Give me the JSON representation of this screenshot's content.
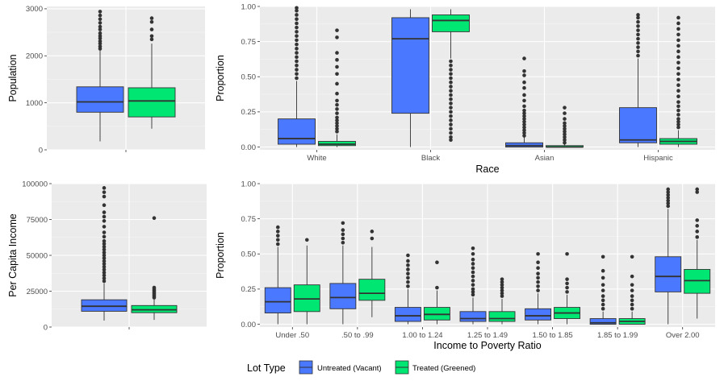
{
  "colors": {
    "untreated": "#4a78ff",
    "treated": "#00e673",
    "panel": "#ebebeb",
    "grid_major": "#ffffff",
    "outline": "#333333"
  },
  "legend": {
    "title": "Lot Type",
    "untreated": "Untreated (Vacant)",
    "treated": "Treated (Greened)"
  },
  "chart_data": [
    {
      "type": "boxplot",
      "ylabel": "Population",
      "xlabel": "",
      "ylim": [
        0,
        3050
      ],
      "yticks": [
        0,
        1000,
        2000,
        3000
      ],
      "ytick_labels": [
        "0",
        "1000",
        "2000",
        "3000"
      ],
      "categories": [
        ""
      ],
      "series": [
        {
          "group": "untreated",
          "boxes": [
            {
              "whislo": 180,
              "q1": 800,
              "med": 1020,
              "q3": 1340,
              "whishi": 2120,
              "fliers": [
                2150,
                2200,
                2260,
                2310,
                2370,
                2420,
                2480,
                2560,
                2620,
                2700,
                2780,
                2860,
                2940
              ]
            }
          ]
        },
        {
          "group": "treated",
          "boxes": [
            {
              "whislo": 450,
              "q1": 700,
              "med": 1040,
              "q3": 1320,
              "whishi": 2260,
              "fliers": [
                2350,
                2420,
                2560,
                2720,
                2800
              ]
            }
          ]
        }
      ]
    },
    {
      "type": "boxplot",
      "ylabel": "Proportion",
      "xlabel": "Race",
      "ylim": [
        -0.02,
        1.0
      ],
      "yticks": [
        0,
        0.25,
        0.5,
        0.75,
        1.0
      ],
      "ytick_labels": [
        "0.00",
        "0.25",
        "0.50",
        "0.75",
        "1.00"
      ],
      "categories": [
        "White",
        "Black",
        "Asian",
        "Hispanic"
      ],
      "series": [
        {
          "group": "untreated",
          "boxes": [
            {
              "whislo": 0,
              "q1": 0.02,
              "med": 0.06,
              "q3": 0.2,
              "whishi": 0.47,
              "fliers": [
                0.49,
                0.52,
                0.55,
                0.58,
                0.61,
                0.64,
                0.67,
                0.7,
                0.73,
                0.76,
                0.79,
                0.82,
                0.85,
                0.88,
                0.91,
                0.94,
                0.97,
                0.99
              ]
            },
            {
              "whislo": 0,
              "q1": 0.24,
              "med": 0.77,
              "q3": 0.92,
              "whishi": 0.98,
              "fliers": []
            },
            {
              "whislo": 0,
              "q1": 0.0,
              "med": 0.01,
              "q3": 0.03,
              "whishi": 0.07,
              "fliers": [
                0.08,
                0.1,
                0.12,
                0.14,
                0.16,
                0.18,
                0.2,
                0.22,
                0.24,
                0.26,
                0.29,
                0.33,
                0.37,
                0.42,
                0.46,
                0.51,
                0.54,
                0.63
              ]
            },
            {
              "whislo": 0,
              "q1": 0.03,
              "med": 0.05,
              "q3": 0.28,
              "whishi": 0.63,
              "fliers": [
                0.65,
                0.68,
                0.71,
                0.74,
                0.77,
                0.8,
                0.83,
                0.86,
                0.89,
                0.92,
                0.94
              ]
            }
          ]
        },
        {
          "group": "treated",
          "boxes": [
            {
              "whislo": 0,
              "q1": 0.01,
              "med": 0.02,
              "q3": 0.04,
              "whishi": 0.09,
              "fliers": [
                0.11,
                0.13,
                0.15,
                0.17,
                0.19,
                0.21,
                0.24,
                0.27,
                0.3,
                0.33,
                0.38,
                0.45,
                0.52,
                0.57,
                0.62,
                0.67,
                0.78,
                0.83
              ]
            },
            {
              "whislo": 0.63,
              "q1": 0.82,
              "med": 0.9,
              "q3": 0.94,
              "whishi": 0.98,
              "fliers": [
                0.61,
                0.58,
                0.55,
                0.52,
                0.49,
                0.46,
                0.43,
                0.4,
                0.37,
                0.34,
                0.31,
                0.28,
                0.25,
                0.22,
                0.19,
                0.16,
                0.13,
                0.1,
                0.07,
                0.05
              ]
            },
            {
              "whislo": 0,
              "q1": 0.0,
              "med": 0.0,
              "q3": 0.01,
              "whishi": 0.02,
              "fliers": [
                0.03,
                0.05,
                0.07,
                0.09,
                0.11,
                0.13,
                0.15,
                0.17,
                0.2,
                0.24,
                0.28
              ]
            },
            {
              "whislo": 0,
              "q1": 0.02,
              "med": 0.04,
              "q3": 0.06,
              "whishi": 0.12,
              "fliers": [
                0.14,
                0.16,
                0.18,
                0.2,
                0.23,
                0.26,
                0.29,
                0.32,
                0.36,
                0.4,
                0.44,
                0.48,
                0.52,
                0.56,
                0.6,
                0.64,
                0.68,
                0.72,
                0.76,
                0.8,
                0.84,
                0.88,
                0.92
              ]
            }
          ]
        }
      ]
    },
    {
      "type": "boxplot",
      "ylabel": "Per Capita Income",
      "xlabel": "",
      "ylim": [
        0,
        100000
      ],
      "yticks": [
        0,
        25000,
        50000,
        75000,
        100000
      ],
      "ytick_labels": [
        "0",
        "25000",
        "50000",
        "75000",
        "100000"
      ],
      "categories": [
        ""
      ],
      "series": [
        {
          "group": "untreated",
          "boxes": [
            {
              "whislo": 4500,
              "q1": 11000,
              "med": 14500,
              "q3": 19000,
              "whishi": 30500,
              "fliers": [
                32000,
                34000,
                36000,
                38000,
                40000,
                42000,
                44000,
                46000,
                48000,
                50000,
                52000,
                54000,
                56000,
                58000,
                60000,
                63000,
                66000,
                70000,
                74000,
                77000,
                80000,
                85000,
                91000,
                94000,
                97000
              ]
            }
          ]
        },
        {
          "group": "treated",
          "boxes": [
            {
              "whislo": 5000,
              "q1": 10000,
              "med": 12000,
              "q3": 15000,
              "whishi": 19500,
              "fliers": [
                20500,
                21500,
                22500,
                23500,
                24500,
                25500,
                26500,
                27500,
                76000
              ]
            }
          ]
        }
      ]
    },
    {
      "type": "boxplot",
      "ylabel": "Proportion",
      "xlabel": "Income to Poverty Ratio",
      "ylim": [
        -0.02,
        1.0
      ],
      "yticks": [
        0,
        0.25,
        0.5,
        0.75,
        1.0
      ],
      "ytick_labels": [
        "0.00",
        "0.25",
        "0.50",
        "0.75",
        "1.00"
      ],
      "categories": [
        "Under .50",
        ".50 to .99",
        "1.00 to 1.24",
        "1.25 to 1.49",
        "1.50 to 1.85",
        "1.85 to 1.99",
        "Over 2.00"
      ],
      "series": [
        {
          "group": "untreated",
          "boxes": [
            {
              "whislo": 0,
              "q1": 0.08,
              "med": 0.16,
              "q3": 0.26,
              "whishi": 0.55,
              "fliers": [
                0.57,
                0.6,
                0.63,
                0.66,
                0.69
              ]
            },
            {
              "whislo": 0,
              "q1": 0.11,
              "med": 0.19,
              "q3": 0.29,
              "whishi": 0.56,
              "fliers": [
                0.58,
                0.61,
                0.64,
                0.67,
                0.72
              ]
            },
            {
              "whislo": 0,
              "q1": 0.02,
              "med": 0.06,
              "q3": 0.12,
              "whishi": 0.25,
              "fliers": [
                0.27,
                0.3,
                0.33,
                0.36,
                0.39,
                0.42,
                0.45,
                0.49
              ]
            },
            {
              "whislo": 0,
              "q1": 0.02,
              "med": 0.04,
              "q3": 0.09,
              "whishi": 0.19,
              "fliers": [
                0.21,
                0.23,
                0.25,
                0.28,
                0.31,
                0.34,
                0.37,
                0.4,
                0.43,
                0.46,
                0.5,
                0.54
              ]
            },
            {
              "whislo": 0,
              "q1": 0.03,
              "med": 0.06,
              "q3": 0.11,
              "whishi": 0.22,
              "fliers": [
                0.24,
                0.27,
                0.3,
                0.33,
                0.36,
                0.4,
                0.44,
                0.5
              ]
            },
            {
              "whislo": 0,
              "q1": 0.0,
              "med": 0.01,
              "q3": 0.04,
              "whishi": 0.09,
              "fliers": [
                0.11,
                0.14,
                0.17,
                0.2,
                0.24,
                0.28,
                0.33,
                0.38,
                0.48
              ]
            },
            {
              "whislo": 0.0,
              "q1": 0.23,
              "med": 0.34,
              "q3": 0.48,
              "whishi": 0.82,
              "fliers": [
                0.84,
                0.86,
                0.88,
                0.9,
                0.92,
                0.94,
                0.96
              ]
            }
          ]
        },
        {
          "group": "treated",
          "boxes": [
            {
              "whislo": 0,
              "q1": 0.09,
              "med": 0.18,
              "q3": 0.28,
              "whishi": 0.56,
              "fliers": [
                0.6
              ]
            },
            {
              "whislo": 0.05,
              "q1": 0.17,
              "med": 0.22,
              "q3": 0.32,
              "whishi": 0.55,
              "fliers": [
                0.61,
                0.66
              ]
            },
            {
              "whislo": 0,
              "q1": 0.03,
              "med": 0.07,
              "q3": 0.12,
              "whishi": 0.24,
              "fliers": [
                0.26,
                0.44
              ]
            },
            {
              "whislo": 0,
              "q1": 0.02,
              "med": 0.04,
              "q3": 0.09,
              "whishi": 0.18,
              "fliers": [
                0.2,
                0.22,
                0.24,
                0.26,
                0.28,
                0.3,
                0.32
              ]
            },
            {
              "whislo": 0,
              "q1": 0.04,
              "med": 0.08,
              "q3": 0.12,
              "whishi": 0.21,
              "fliers": [
                0.23,
                0.26,
                0.29,
                0.32,
                0.5
              ]
            },
            {
              "whislo": 0,
              "q1": 0.0,
              "med": 0.02,
              "q3": 0.04,
              "whishi": 0.09,
              "fliers": [
                0.11,
                0.14,
                0.17,
                0.2,
                0.24,
                0.28,
                0.34,
                0.48
              ]
            },
            {
              "whislo": 0.04,
              "q1": 0.22,
              "med": 0.31,
              "q3": 0.39,
              "whishi": 0.6,
              "fliers": [
                0.62,
                0.66,
                0.7,
                0.74,
                0.94,
                0.96
              ]
            }
          ]
        }
      ]
    }
  ]
}
